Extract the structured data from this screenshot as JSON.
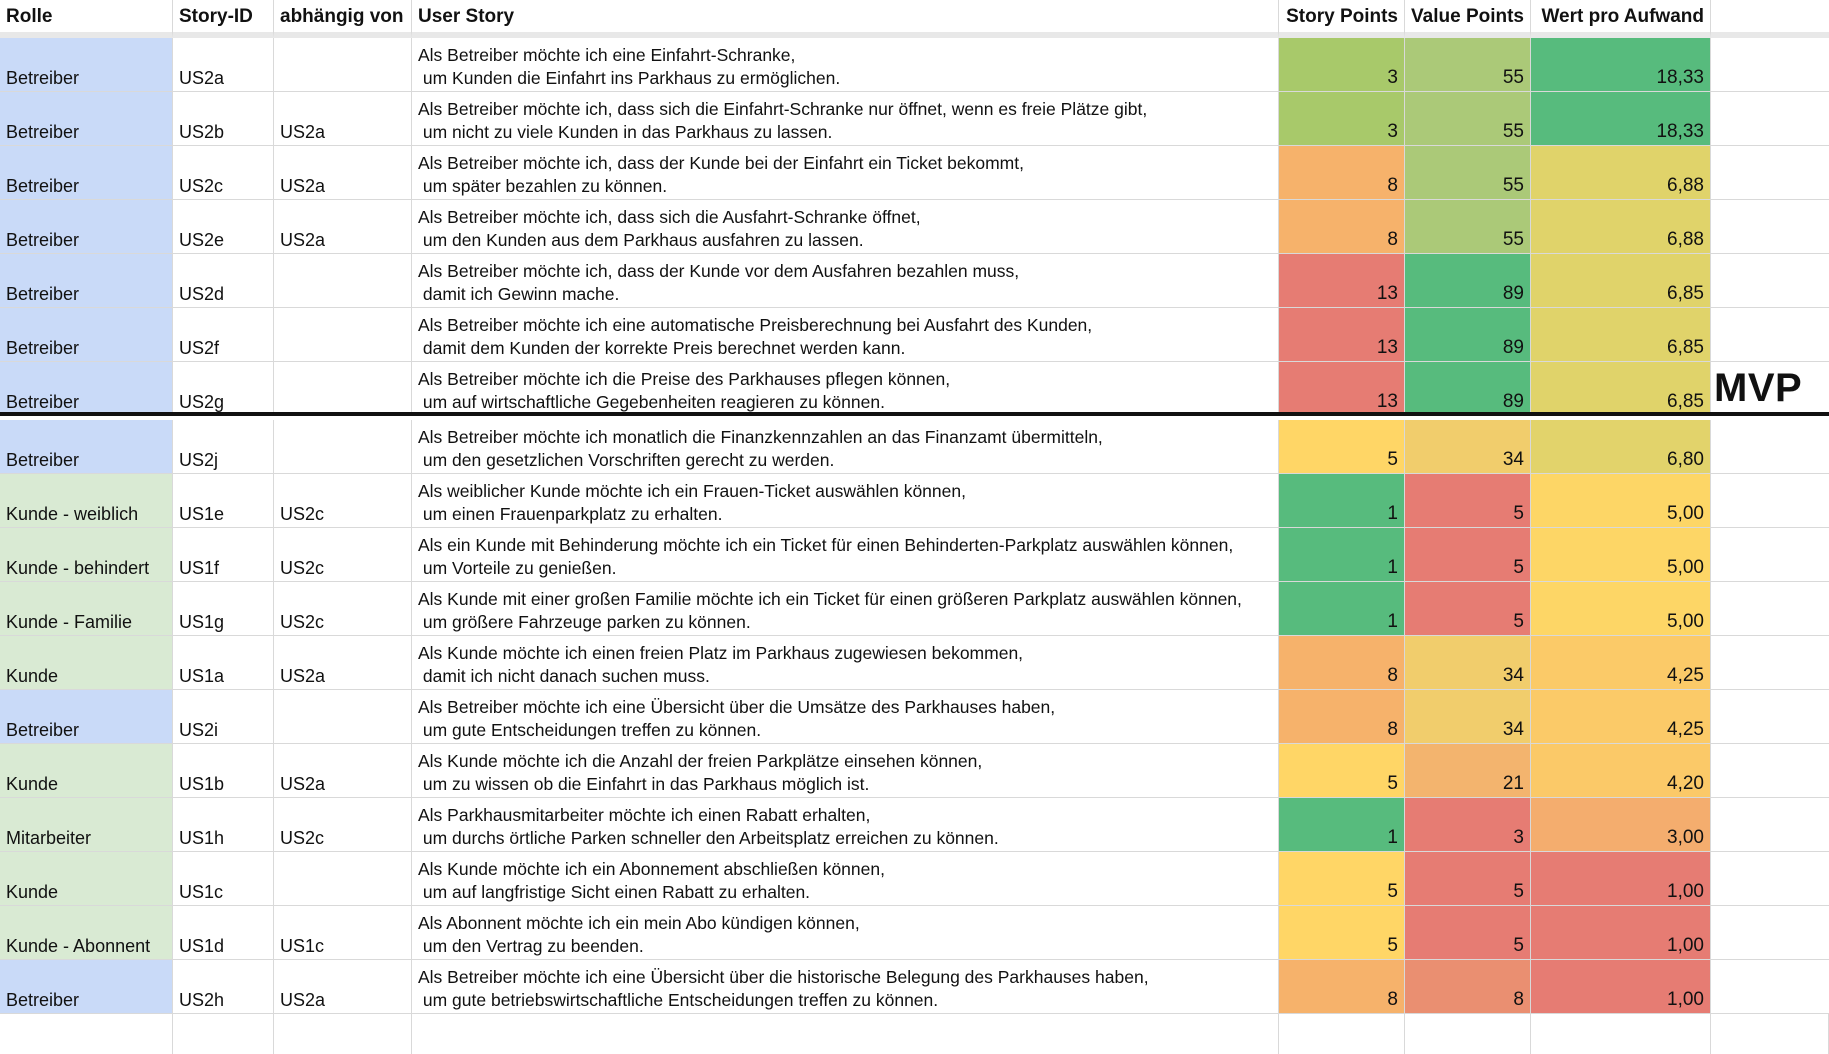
{
  "header": {
    "rolle": "Rolle",
    "story_id": "Story-ID",
    "abhaengig": "abhängig von",
    "user_story": "User Story",
    "story_points": "Story Points",
    "value_points": "Value Points",
    "wert": "Wert pro Aufwand"
  },
  "mvp_label": "MVP",
  "colors": {
    "role_blue": "#c9daf8",
    "role_green": "#d9ead3",
    "header_bg": "#ffffff"
  },
  "rows": [
    {
      "rolle": "Betreiber",
      "role_color": "#c9daf8",
      "id": "US2a",
      "dep": "",
      "story1": "Als Betreiber möchte ich eine Einfahrt-Schranke,",
      "story2": " um Kunden die Einfahrt ins Parkhaus zu ermöglichen.",
      "sp": "3",
      "vp": "55",
      "wert": "18,33",
      "sp_color": "#a8c96a",
      "vp_color": "#abc978",
      "wert_color": "#57bb7d"
    },
    {
      "rolle": "Betreiber",
      "role_color": "#c9daf8",
      "id": "US2b",
      "dep": "US2a",
      "story1": "Als Betreiber möchte ich, dass sich die Einfahrt-Schranke nur öffnet, wenn es freie Plätze gibt,",
      "story2": " um nicht zu viele Kunden in das Parkhaus zu lassen.",
      "sp": "3",
      "vp": "55",
      "wert": "18,33",
      "sp_color": "#a8c96a",
      "vp_color": "#abc978",
      "wert_color": "#57bb7d"
    },
    {
      "rolle": "Betreiber",
      "role_color": "#c9daf8",
      "id": "US2c",
      "dep": "US2a",
      "story1": "Als Betreiber möchte ich, dass der Kunde bei der Einfahrt ein Ticket bekommt,",
      "story2": " um später bezahlen zu können.",
      "sp": "8",
      "vp": "55",
      "wert": "6,88",
      "sp_color": "#f6b26b",
      "vp_color": "#abc978",
      "wert_color": "#e0d36a"
    },
    {
      "rolle": "Betreiber",
      "role_color": "#c9daf8",
      "id": "US2e",
      "dep": "US2a",
      "story1": "Als Betreiber möchte ich, dass sich die Ausfahrt-Schranke öffnet,",
      "story2": " um den Kunden aus dem Parkhaus ausfahren zu lassen.",
      "sp": "8",
      "vp": "55",
      "wert": "6,88",
      "sp_color": "#f6b26b",
      "vp_color": "#abc978",
      "wert_color": "#e0d36a"
    },
    {
      "rolle": "Betreiber",
      "role_color": "#c9daf8",
      "id": "US2d",
      "dep": "",
      "story1": "Als Betreiber möchte ich, dass der Kunde vor dem Ausfahren bezahlen muss,",
      "story2": " damit ich Gewinn mache.",
      "sp": "13",
      "vp": "89",
      "wert": "6,85",
      "sp_color": "#e67c73",
      "vp_color": "#57bb7d",
      "wert_color": "#e0d36a"
    },
    {
      "rolle": "Betreiber",
      "role_color": "#c9daf8",
      "id": "US2f",
      "dep": "",
      "story1": "Als Betreiber möchte ich eine automatische Preisberechnung bei Ausfahrt des Kunden,",
      "story2": " damit dem Kunden der korrekte Preis berechnet werden kann.",
      "sp": "13",
      "vp": "89",
      "wert": "6,85",
      "sp_color": "#e67c73",
      "vp_color": "#57bb7d",
      "wert_color": "#e0d36a"
    },
    {
      "rolle": "Betreiber",
      "role_color": "#c9daf8",
      "id": "US2g",
      "dep": "",
      "story1": "Als Betreiber möchte ich die Preise des Parkhauses pflegen können,",
      "story2": " um auf wirtschaftliche Gegebenheiten reagieren zu können.",
      "sp": "13",
      "vp": "89",
      "wert": "6,85",
      "sp_color": "#e67c73",
      "vp_color": "#57bb7d",
      "wert_color": "#e0d36a"
    },
    {
      "rolle": "Betreiber",
      "role_color": "#c9daf8",
      "id": "US2j",
      "dep": "",
      "story1": "Als Betreiber möchte ich monatlich die Finanzkennzahlen an das Finanzamt übermitteln,",
      "story2": " um den gesetzlichen Vorschriften gerecht zu werden.",
      "sp": "5",
      "vp": "34",
      "wert": "6,80",
      "sp_color": "#ffd666",
      "vp_color": "#f1cd6c",
      "wert_color": "#e2d36b"
    },
    {
      "rolle": "Kunde - weiblich",
      "role_color": "#d9ead3",
      "id": "US1e",
      "dep": "US2c",
      "story1": "Als weiblicher Kunde möchte ich ein Frauen-Ticket auswählen können,",
      "story2": " um einen Frauenparkplatz zu erhalten.",
      "sp": "1",
      "vp": "5",
      "wert": "5,00",
      "sp_color": "#57bb7d",
      "vp_color": "#e67c73",
      "wert_color": "#fdd666"
    },
    {
      "rolle": "Kunde - behindert",
      "role_color": "#d9ead3",
      "id": "US1f",
      "dep": "US2c",
      "story1": "Als ein Kunde mit Behinderung möchte ich ein Ticket für einen Behinderten-Parkplatz auswählen können,",
      "story2": " um Vorteile zu genießen.",
      "sp": "1",
      "vp": "5",
      "wert": "5,00",
      "sp_color": "#57bb7d",
      "vp_color": "#e67c73",
      "wert_color": "#fdd666"
    },
    {
      "rolle": "Kunde - Familie",
      "role_color": "#d9ead3",
      "id": "US1g",
      "dep": "US2c",
      "story1": "Als Kunde mit einer großen Familie möchte ich ein Ticket für einen größeren Parkplatz auswählen können,",
      "story2": " um größere Fahrzeuge parken zu können.",
      "sp": "1",
      "vp": "5",
      "wert": "5,00",
      "sp_color": "#57bb7d",
      "vp_color": "#e67c73",
      "wert_color": "#fdd666"
    },
    {
      "rolle": "Kunde",
      "role_color": "#d9ead3",
      "id": "US1a",
      "dep": "US2a",
      "story1": "Als Kunde möchte ich einen freien Platz im Parkhaus zugewiesen bekommen,",
      "story2": " damit ich nicht danach suchen muss.",
      "sp": "8",
      "vp": "34",
      "wert": "4,25",
      "sp_color": "#f6b26b",
      "vp_color": "#f1cd6c",
      "wert_color": "#fbca68"
    },
    {
      "rolle": "Betreiber",
      "role_color": "#c9daf8",
      "id": "US2i",
      "dep": "",
      "story1": "Als Betreiber möchte ich eine Übersicht über die Umsätze des Parkhauses haben,",
      "story2": " um gute Entscheidungen treffen zu können.",
      "sp": "8",
      "vp": "34",
      "wert": "4,25",
      "sp_color": "#f6b26b",
      "vp_color": "#f1cd6c",
      "wert_color": "#fbca68"
    },
    {
      "rolle": "Kunde",
      "role_color": "#d9ead3",
      "id": "US1b",
      "dep": "US2a",
      "story1": "Als Kunde möchte ich die Anzahl der freien Parkplätze einsehen können,",
      "story2": " um zu wissen ob die Einfahrt in das Parkhaus möglich ist.",
      "sp": "5",
      "vp": "21",
      "wert": "4,20",
      "sp_color": "#ffd666",
      "vp_color": "#f3b46e",
      "wert_color": "#fbc968"
    },
    {
      "rolle": "Mitarbeiter",
      "role_color": "#d9ead3",
      "id": "US1h",
      "dep": "US2c",
      "story1": "Als Parkhausmitarbeiter möchte ich einen Rabatt erhalten,",
      "story2": " um durchs örtliche Parken schneller den Arbeitsplatz erreichen zu können.",
      "sp": "1",
      "vp": "3",
      "wert": "3,00",
      "sp_color": "#57bb7d",
      "vp_color": "#e67c73",
      "wert_color": "#f4ad6e"
    },
    {
      "rolle": "Kunde",
      "role_color": "#d9ead3",
      "id": "US1c",
      "dep": "",
      "story1": "Als Kunde möchte ich ein Abonnement abschließen können,",
      "story2": " um auf langfristige Sicht einen Rabatt zu erhalten.",
      "sp": "5",
      "vp": "5",
      "wert": "1,00",
      "sp_color": "#ffd666",
      "vp_color": "#e67c73",
      "wert_color": "#e67c73"
    },
    {
      "rolle": "Kunde - Abonnent",
      "role_color": "#d9ead3",
      "id": "US1d",
      "dep": "US1c",
      "story1": "Als Abonnent möchte ich ein mein Abo kündigen können,",
      "story2": " um den Vertrag zu beenden.",
      "sp": "5",
      "vp": "5",
      "wert": "1,00",
      "sp_color": "#ffd666",
      "vp_color": "#e67c73",
      "wert_color": "#e67c73"
    },
    {
      "rolle": "Betreiber",
      "role_color": "#c9daf8",
      "id": "US2h",
      "dep": "US2a",
      "story1": "Als Betreiber möchte ich eine Übersicht über die historische Belegung des Parkhauses haben,",
      "story2": " um gute betriebswirtschaftliche Entscheidungen treffen zu können.",
      "sp": "8",
      "vp": "8",
      "wert": "1,00",
      "sp_color": "#f6b26b",
      "vp_color": "#ea8f71",
      "wert_color": "#e67c73"
    }
  ]
}
